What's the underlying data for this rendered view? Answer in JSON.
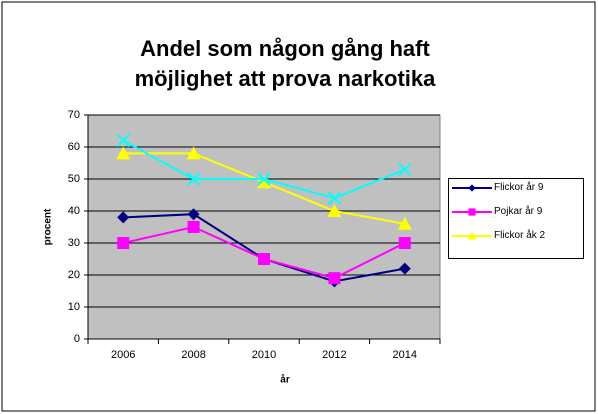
{
  "chart_data": {
    "type": "line",
    "title": [
      "Andel som någon gång haft",
      "möjlighet att prova narkotika"
    ],
    "x_label": "år",
    "y_label": "procent",
    "categories": [
      "2006",
      "2008",
      "2010",
      "2012",
      "2014"
    ],
    "series": [
      {
        "name": "Flickor år 9",
        "color": "#000080",
        "marker": "diamond",
        "values": [
          38,
          39,
          25,
          18,
          22
        ]
      },
      {
        "name": "Pojkar år 9",
        "color": "#ff00ff",
        "marker": "square",
        "values": [
          30,
          35,
          25,
          19,
          30
        ]
      },
      {
        "name": "Flickor åk 2",
        "color": "#ffff00",
        "marker": "triangle",
        "values": [
          58,
          58,
          49,
          40,
          36
        ]
      },
      {
        "color": "#00ffff",
        "marker": "x",
        "values": [
          62,
          50,
          50,
          44,
          53
        ]
      }
    ],
    "ylim": [
      0,
      70
    ],
    "yticks": [
      0,
      10,
      20,
      30,
      40,
      50,
      60,
      70
    ],
    "grid": true,
    "legend": "right"
  }
}
